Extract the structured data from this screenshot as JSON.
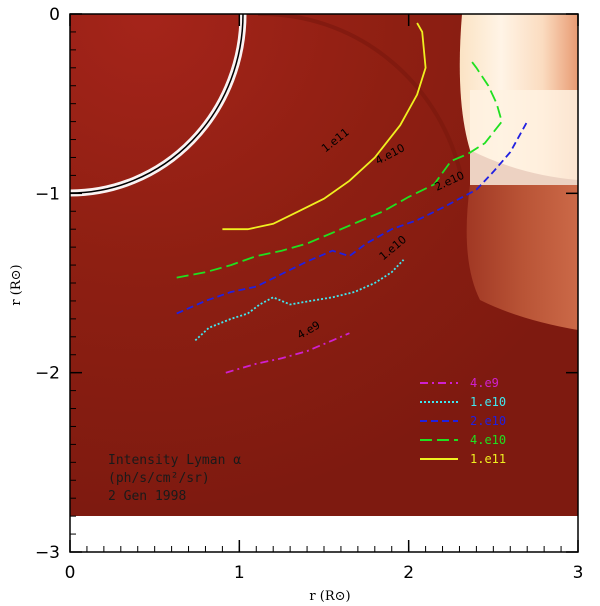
{
  "chart_data": {
    "type": "line",
    "xlabel": "r (R⊙)",
    "ylabel": "r (R⊙)",
    "xlim": [
      0,
      3
    ],
    "ylim": [
      -3,
      0
    ],
    "xticks": [
      "0",
      "1",
      "2",
      "3"
    ],
    "yticks": [
      "0",
      "−1",
      "−2",
      "−3"
    ],
    "annotation": [
      "Intensity Lyman α",
      "(ph/s/cm²/sr)",
      "2 Gen 1998"
    ],
    "colors": {
      "background": "#8e1f12",
      "disk": "#8a1a10",
      "corona_bright": "#fff6e8"
    },
    "series": [
      {
        "name": "4.e9",
        "style": "dash-dot",
        "color": "#d020d0",
        "points": [
          [
            0.92,
            -2.0
          ],
          [
            1.1,
            -1.95
          ],
          [
            1.25,
            -1.92
          ],
          [
            1.4,
            -1.88
          ],
          [
            1.55,
            -1.82
          ],
          [
            1.65,
            -1.78
          ]
        ]
      },
      {
        "name": "1.e10",
        "style": "dotted",
        "color": "#40e8f0",
        "points": [
          [
            0.74,
            -1.82
          ],
          [
            0.82,
            -1.75
          ],
          [
            0.95,
            -1.7
          ],
          [
            1.05,
            -1.67
          ],
          [
            1.12,
            -1.62
          ],
          [
            1.2,
            -1.58
          ],
          [
            1.3,
            -1.62
          ],
          [
            1.42,
            -1.6
          ],
          [
            1.55,
            -1.58
          ],
          [
            1.68,
            -1.55
          ],
          [
            1.8,
            -1.5
          ],
          [
            1.9,
            -1.44
          ],
          [
            1.97,
            -1.37
          ]
        ]
      },
      {
        "name": "2.e10",
        "style": "dashed",
        "color": "#2020e0",
        "points": [
          [
            0.63,
            -1.67
          ],
          [
            0.8,
            -1.6
          ],
          [
            0.95,
            -1.55
          ],
          [
            1.1,
            -1.52
          ],
          [
            1.25,
            -1.45
          ],
          [
            1.4,
            -1.38
          ],
          [
            1.55,
            -1.32
          ],
          [
            1.65,
            -1.35
          ],
          [
            1.75,
            -1.28
          ],
          [
            1.9,
            -1.2
          ],
          [
            2.05,
            -1.15
          ],
          [
            2.2,
            -1.08
          ],
          [
            2.3,
            -1.03
          ],
          [
            2.4,
            -0.98
          ],
          [
            2.5,
            -0.88
          ],
          [
            2.6,
            -0.77
          ],
          [
            2.7,
            -0.6
          ]
        ]
      },
      {
        "name": "4.e10",
        "style": "long-dash",
        "color": "#20e020",
        "points": [
          [
            0.63,
            -1.47
          ],
          [
            0.8,
            -1.44
          ],
          [
            0.95,
            -1.4
          ],
          [
            1.1,
            -1.35
          ],
          [
            1.25,
            -1.32
          ],
          [
            1.4,
            -1.28
          ],
          [
            1.55,
            -1.22
          ],
          [
            1.7,
            -1.16
          ],
          [
            1.85,
            -1.1
          ],
          [
            2.0,
            -1.02
          ],
          [
            2.15,
            -0.95
          ],
          [
            2.25,
            -0.82
          ],
          [
            2.35,
            -0.78
          ],
          [
            2.45,
            -0.72
          ],
          [
            2.55,
            -0.6
          ],
          [
            2.52,
            -0.5
          ],
          [
            2.47,
            -0.4
          ],
          [
            2.4,
            -0.3
          ],
          [
            2.36,
            -0.25
          ]
        ]
      },
      {
        "name": "1.e11",
        "style": "solid",
        "color": "#f0f020",
        "points": [
          [
            0.9,
            -1.2
          ],
          [
            1.05,
            -1.2
          ],
          [
            1.2,
            -1.17
          ],
          [
            1.35,
            -1.1
          ],
          [
            1.5,
            -1.03
          ],
          [
            1.65,
            -0.93
          ],
          [
            1.8,
            -0.8
          ],
          [
            1.95,
            -0.62
          ],
          [
            2.05,
            -0.45
          ],
          [
            2.1,
            -0.3
          ],
          [
            2.08,
            -0.1
          ],
          [
            2.05,
            -0.05
          ]
        ]
      }
    ],
    "contour_labels": [
      {
        "text": "1.e11",
        "x": 1.58,
        "y": -0.72,
        "angle": -38
      },
      {
        "text": "4.e10",
        "x": 1.9,
        "y": -0.8,
        "angle": -28
      },
      {
        "text": "2.e10",
        "x": 2.25,
        "y": -0.95,
        "angle": -25
      },
      {
        "text": "1.e10",
        "x": 1.92,
        "y": -1.32,
        "angle": -40
      },
      {
        "text": "4.e9",
        "x": 1.42,
        "y": -1.78,
        "angle": -30
      }
    ],
    "legend_order": [
      "4.e9",
      "1.e10",
      "2.e10",
      "4.e10",
      "1.e11"
    ],
    "legend_placement": "bottom-right"
  }
}
